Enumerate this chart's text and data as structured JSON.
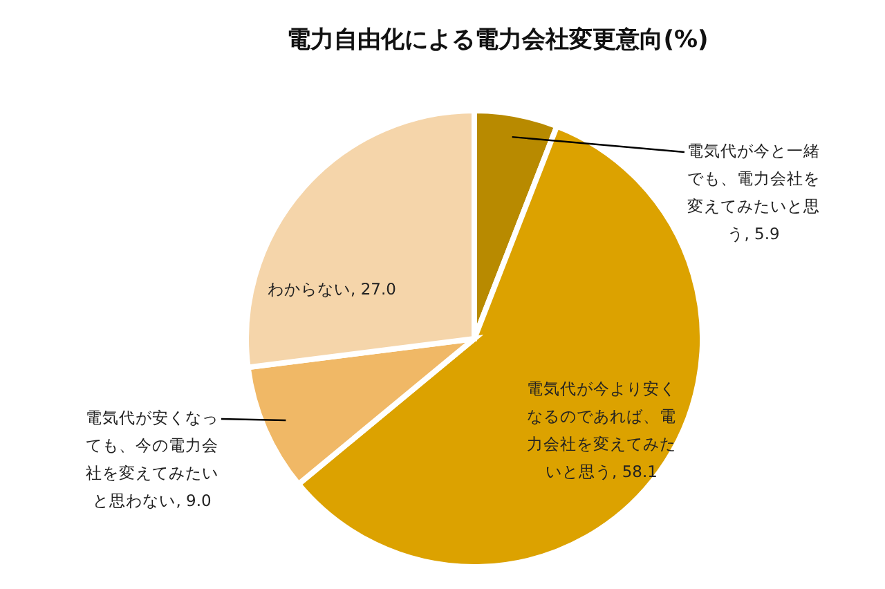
{
  "chart_data": {
    "type": "pie",
    "title": "電力自由化による電力会社変更意向(%)",
    "categories": [
      "電気代が今と一緒でも、電力会社を変えてみたいと思う",
      "電気代が今より安くなるのであれば、電力会社を変えてみたいと思う",
      "電気代が安くなっても、今の電力会社を変えてみたいと思わない",
      "わからない"
    ],
    "values": [
      5.9,
      58.1,
      9.0,
      27.0
    ],
    "value_labels": [
      "5.9",
      "58.1",
      "9.0",
      "27.0"
    ],
    "colors": [
      "#b88a00",
      "#dca200",
      "#f0b866",
      "#f5d5aa"
    ]
  }
}
